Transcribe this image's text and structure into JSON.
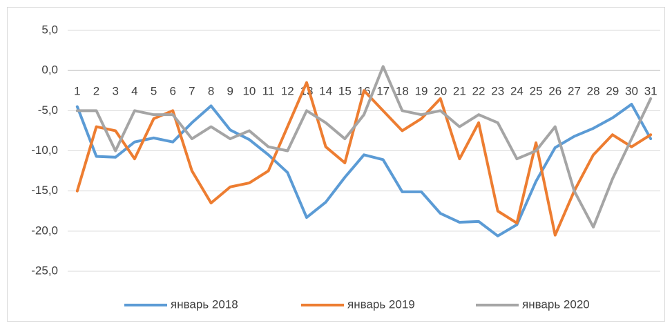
{
  "chart_data": {
    "type": "line",
    "categories": [
      "1",
      "2",
      "3",
      "4",
      "5",
      "6",
      "7",
      "8",
      "9",
      "10",
      "11",
      "12",
      "13",
      "14",
      "15",
      "16",
      "17",
      "18",
      "19",
      "20",
      "21",
      "22",
      "23",
      "24",
      "25",
      "26",
      "27",
      "28",
      "29",
      "30",
      "31"
    ],
    "series": [
      {
        "name": "январь 2018",
        "color": "#5b9bd5",
        "values": [
          -4.5,
          -10.7,
          -10.8,
          -8.9,
          -8.4,
          -8.9,
          -6.5,
          -4.4,
          -7.4,
          -8.6,
          -10.5,
          -12.7,
          -18.3,
          -16.4,
          -13.3,
          -10.5,
          -11.1,
          -15.1,
          -15.1,
          -17.8,
          -18.9,
          -18.8,
          -20.6,
          -19.2,
          -13.8,
          -9.6,
          -8.2,
          -7.2,
          -5.9,
          -4.2,
          -8.5
        ]
      },
      {
        "name": "январь 2019",
        "color": "#ed7d31",
        "values": [
          -15,
          -7,
          -7.5,
          -11,
          -6,
          -5,
          -12.5,
          -16.5,
          -14.5,
          -14,
          -12.5,
          -7,
          -1.5,
          -9.5,
          -11.5,
          -2.5,
          -5,
          -7.5,
          -6,
          -3.5,
          -11,
          -6.5,
          -17.5,
          -19,
          -9,
          -20.5,
          -15,
          -10.5,
          -8,
          -9.5,
          -8
        ]
      },
      {
        "name": "январь 2020",
        "color": "#a5a5a5",
        "values": [
          -5,
          -5,
          -10,
          -5,
          -5.5,
          -5.5,
          -8.5,
          -7,
          -8.5,
          -7.5,
          -9.5,
          -10,
          -5,
          -6.5,
          -8.5,
          -5.5,
          0.5,
          -5,
          -5.5,
          -5,
          -7,
          -5.5,
          -6.5,
          -11,
          -10,
          -7,
          -15,
          -19.5,
          -13.5,
          -8.5,
          -3.5
        ]
      }
    ],
    "ylim": [
      -25,
      5
    ],
    "yticks": [
      {
        "value": 5,
        "label": "5,0"
      },
      {
        "value": 0,
        "label": "0,0"
      },
      {
        "value": -5,
        "label": "-5,0"
      },
      {
        "value": -10,
        "label": "-10,0"
      },
      {
        "value": -15,
        "label": "-15,0"
      },
      {
        "value": -20,
        "label": "-20,0"
      },
      {
        "value": -25,
        "label": "-25,0"
      }
    ],
    "grid": true,
    "legend": "bottom"
  }
}
